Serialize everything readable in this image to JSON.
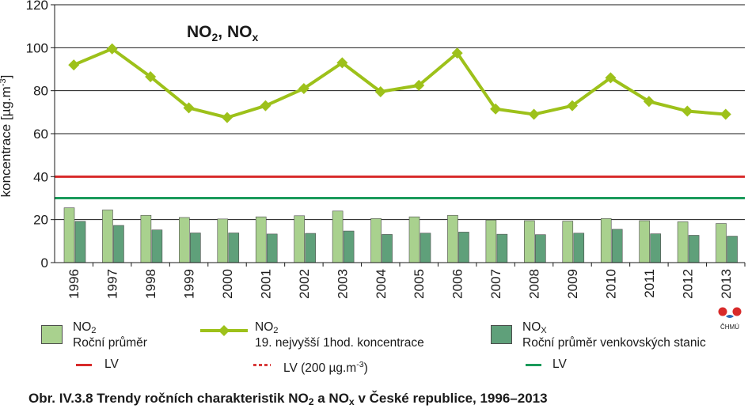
{
  "chart_data": {
    "type": "bar",
    "title_main": "NO",
    "title_sub1": "2",
    "title_mid": ", NO",
    "title_sub2": "x",
    "ylabel": "koncentrace [µg.m",
    "ylabel_sup": "-3",
    "ylabel_end": "]",
    "ylim": [
      0,
      120
    ],
    "yticks": [
      0,
      20,
      40,
      60,
      80,
      100,
      120
    ],
    "grid": true,
    "categories": [
      "1996",
      "1997",
      "1998",
      "1999",
      "2000",
      "2001",
      "2002",
      "2003",
      "2004",
      "2005",
      "2006",
      "2007",
      "2008",
      "2009",
      "2010",
      "2011",
      "2012",
      "2013"
    ],
    "series": [
      {
        "name": "NO2 Roční průměr",
        "kind": "bar",
        "color": "#a9d18e",
        "values": [
          25.5,
          24.5,
          22,
          21,
          20.3,
          21.3,
          21.8,
          24,
          20.5,
          21.3,
          22,
          19.8,
          19.5,
          19.3,
          20.5,
          19.5,
          19,
          18.2
        ]
      },
      {
        "name": "NOx Roční průměr venkovských stanic",
        "kind": "bar",
        "color": "#5fa07a",
        "values": [
          19.2,
          17.3,
          15.2,
          13.8,
          13.8,
          13.3,
          13.6,
          14.7,
          13.1,
          13.7,
          14.2,
          13.2,
          13,
          13.7,
          15.5,
          13.4,
          12.7,
          12.3
        ]
      },
      {
        "name": "NO2 19. nejvyšší 1hod. koncentrace",
        "kind": "line",
        "color": "#9dc11a",
        "values": [
          92,
          99.5,
          86.5,
          72,
          67.5,
          73,
          81,
          93,
          79.5,
          82.5,
          97.5,
          71.5,
          69,
          73,
          86,
          75,
          70.5,
          69
        ]
      }
    ],
    "limit_lines": [
      {
        "value": 40,
        "color": "#d82a2a",
        "label": "LV"
      },
      {
        "value": 30,
        "color": "#1a9a5a",
        "label": "LV"
      }
    ]
  },
  "legend": {
    "no2_label": "NO",
    "no2_sub": "2",
    "no2_desc": "Roční průměr",
    "lv1": "LV",
    "line_label": "NO",
    "line_sub": "2",
    "line_desc": "19. nejvyšší 1hod. koncentrace",
    "lv2_pre": "LV (200 µg.m",
    "lv2_sup": "-3",
    "lv2_post": ")",
    "nox_label": "NO",
    "nox_sub": "X",
    "nox_desc": "Roční průměr venkovských stanic",
    "lv3": "LV"
  },
  "logo": {
    "text": "ČHMÚ"
  },
  "caption": {
    "pre": "Obr. IV.3.8  Trendy ročních charakteristik NO",
    "sub1": "2",
    "mid": " a NO",
    "sub2": "x",
    "post": " v České republice, 1996–2013"
  }
}
